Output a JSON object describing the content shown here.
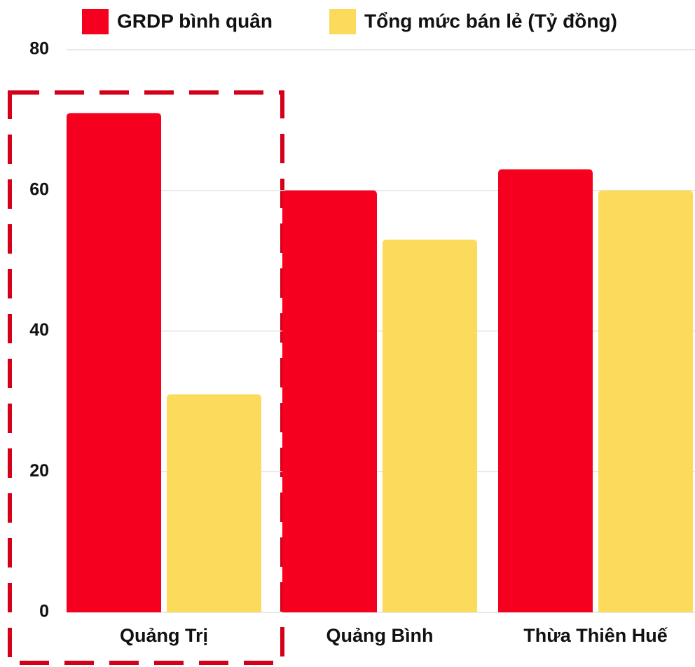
{
  "chart_data": {
    "type": "bar",
    "categories": [
      "Quảng Trị",
      "Quảng Bình",
      "Thừa Thiên Huế"
    ],
    "series": [
      {
        "name": "GRDP bình quân",
        "color": "#f5001e",
        "values": [
          71,
          60,
          63
        ]
      },
      {
        "name": "Tổng mức bán lẻ (Tỷ đồng)",
        "color": "#fcdb5c",
        "values": [
          31,
          53,
          60
        ]
      }
    ],
    "ylim": [
      0,
      80
    ],
    "yticks": [
      0,
      20,
      40,
      60,
      80
    ],
    "grid": true
  }
}
